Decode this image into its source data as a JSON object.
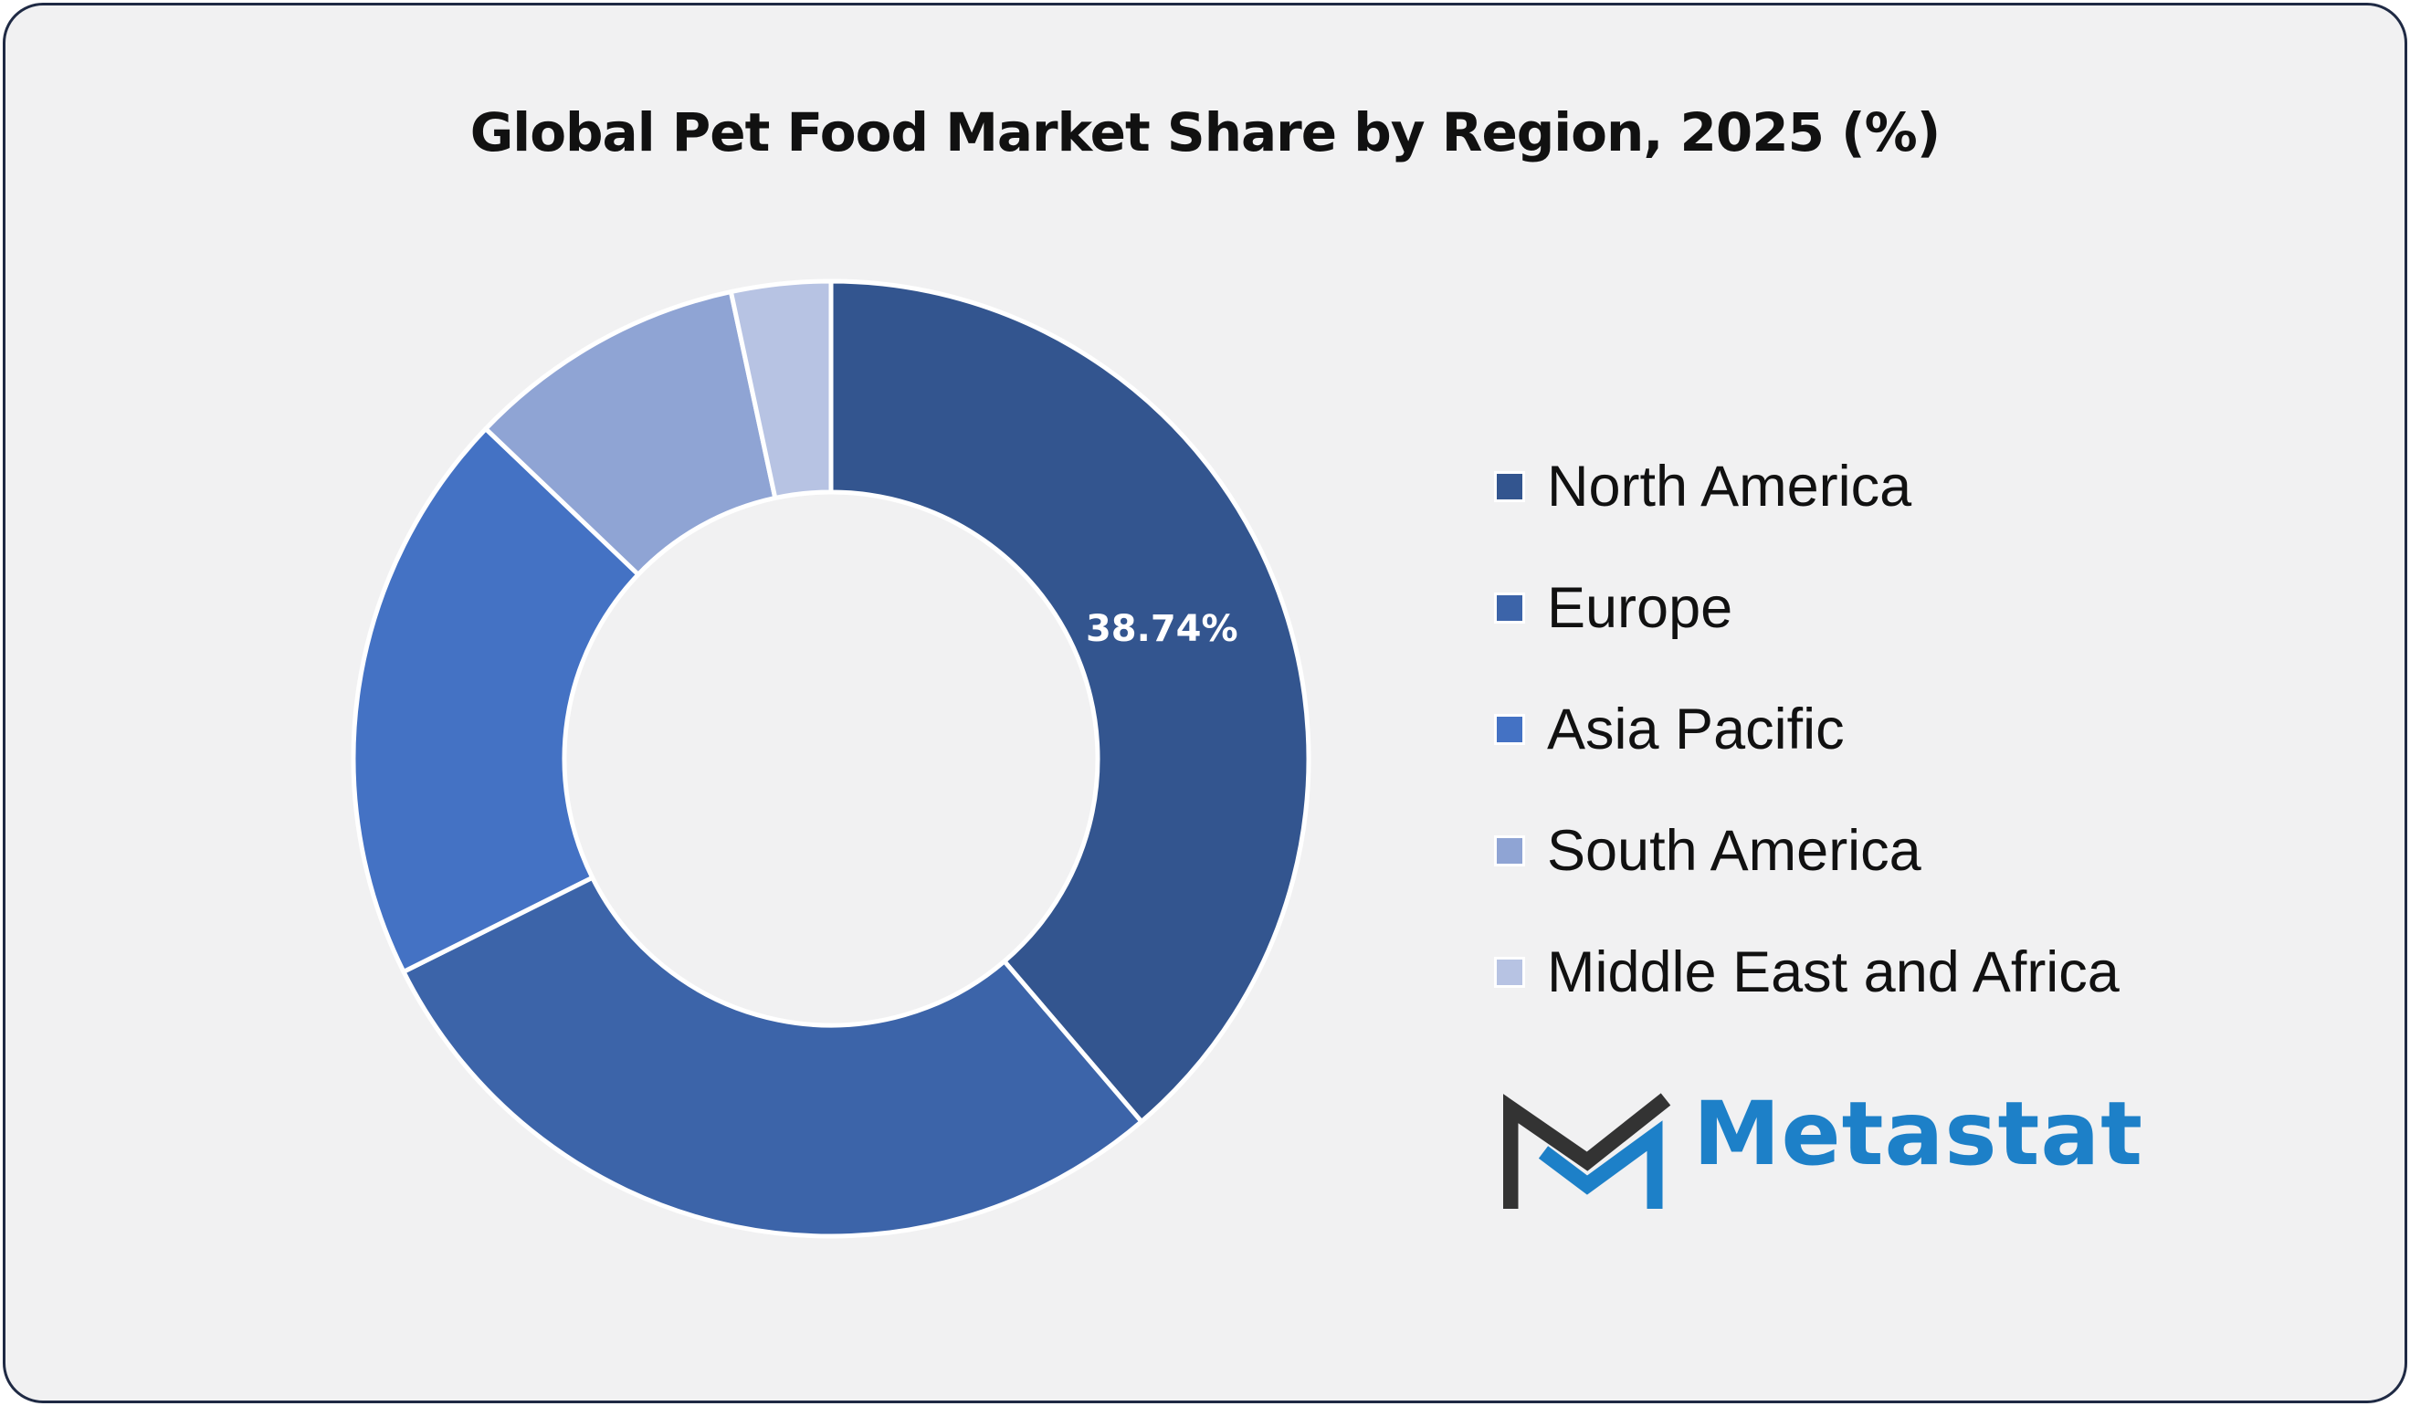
{
  "chart_data": {
    "type": "pie",
    "title": "Global Pet Food Market Share by Region, 2025 (%)",
    "categories": [
      "North America",
      "Europe",
      "Asia Pacific",
      "South America",
      "Middle East and Africa"
    ],
    "values": [
      38.74,
      28.9,
      19.5,
      9.5,
      3.36
    ],
    "colors": [
      "#33558f",
      "#3c64a9",
      "#4472c4",
      "#8fa4d4",
      "#b7c3e3"
    ],
    "data_labels": [
      "38.74%",
      null,
      null,
      null,
      null
    ],
    "donut": true,
    "legend_position": "right"
  },
  "branding": {
    "logo_text": "Metastat",
    "logo_icon": "metastat-m-logo",
    "logo_color": "#1d80c8",
    "logo_dark_color": "#333333"
  },
  "frame": {
    "background": "#f1f1f2",
    "border_color": "#1f2a44"
  }
}
